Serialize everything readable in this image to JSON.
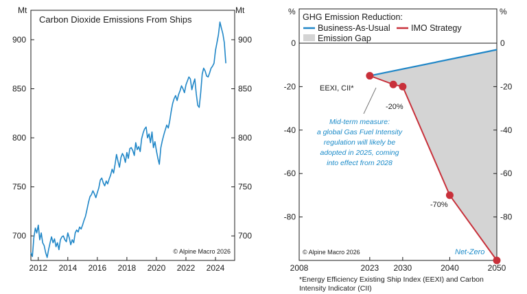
{
  "chart_data": [
    {
      "type": "line",
      "title": "Carbon Dioxide Emissions From Ships",
      "unit_left": "Mt",
      "unit_right": "Mt",
      "credit": "© Alpine Macro 2026",
      "xlim": [
        2011.5,
        2025.3
      ],
      "ylim": [
        675,
        930
      ],
      "x_ticks": [
        2012,
        2014,
        2016,
        2018,
        2020,
        2022,
        2024
      ],
      "y_ticks": [
        700,
        750,
        800,
        850,
        900
      ],
      "grid": false,
      "color": "#1f86c7",
      "series": [
        {
          "x": [
            2011.5,
            2011.6,
            2011.7,
            2011.8,
            2011.9,
            2012.0,
            2012.1,
            2012.2,
            2012.3,
            2012.4,
            2012.5,
            2012.6,
            2012.7,
            2012.8,
            2012.9,
            2013.0,
            2013.1,
            2013.2,
            2013.3,
            2013.4,
            2013.5,
            2013.6,
            2013.7,
            2013.8,
            2013.9,
            2014.0,
            2014.1,
            2014.2,
            2014.3,
            2014.4,
            2014.5,
            2014.6,
            2014.7,
            2014.8,
            2014.9,
            2015.0,
            2015.1,
            2015.2,
            2015.3,
            2015.4,
            2015.5,
            2015.6,
            2015.7,
            2015.8,
            2015.9,
            2016.0,
            2016.1,
            2016.2,
            2016.3,
            2016.4,
            2016.5,
            2016.6,
            2016.7,
            2016.8,
            2016.9,
            2017.0,
            2017.1,
            2017.2,
            2017.3,
            2017.4,
            2017.5,
            2017.6,
            2017.7,
            2017.8,
            2017.9,
            2018.0,
            2018.1,
            2018.2,
            2018.3,
            2018.4,
            2018.5,
            2018.6,
            2018.7,
            2018.8,
            2018.9,
            2019.0,
            2019.1,
            2019.2,
            2019.3,
            2019.4,
            2019.5,
            2019.6,
            2019.7,
            2019.8,
            2019.9,
            2020.0,
            2020.1,
            2020.2,
            2020.3,
            2020.4,
            2020.5,
            2020.6,
            2020.7,
            2020.8,
            2020.9,
            2021.0,
            2021.1,
            2021.2,
            2021.3,
            2021.4,
            2021.5,
            2021.6,
            2021.7,
            2021.8,
            2021.9,
            2022.0,
            2022.1,
            2022.2,
            2022.3,
            2022.4,
            2022.5,
            2022.6,
            2022.7,
            2022.8,
            2022.9,
            2023.0,
            2023.1,
            2023.2,
            2023.3,
            2023.4,
            2023.5,
            2023.6,
            2023.7,
            2023.8,
            2023.9,
            2024.0,
            2024.1,
            2024.2,
            2024.3,
            2024.4,
            2024.5,
            2024.6,
            2024.7
          ],
          "values": [
            683,
            679,
            698,
            708,
            703,
            711,
            696,
            703,
            693,
            690,
            683,
            678,
            686,
            693,
            699,
            693,
            697,
            689,
            693,
            686,
            696,
            699,
            700,
            696,
            694,
            703,
            698,
            691,
            696,
            693,
            703,
            706,
            704,
            709,
            707,
            711,
            716,
            720,
            727,
            734,
            740,
            742,
            746,
            743,
            739,
            744,
            749,
            757,
            759,
            754,
            751,
            756,
            753,
            758,
            762,
            768,
            764,
            773,
            783,
            776,
            770,
            780,
            784,
            781,
            775,
            785,
            779,
            789,
            790,
            787,
            782,
            795,
            788,
            791,
            786,
            799,
            805,
            809,
            811,
            800,
            804,
            795,
            806,
            790,
            796,
            787,
            779,
            773,
            790,
            797,
            803,
            808,
            813,
            810,
            817,
            827,
            835,
            840,
            843,
            838,
            844,
            848,
            853,
            850,
            846,
            854,
            858,
            862,
            860,
            849,
            855,
            860,
            845,
            833,
            831,
            846,
            865,
            871,
            868,
            863,
            862,
            866,
            871,
            873,
            876,
            889,
            897,
            905,
            918,
            912,
            906,
            897,
            876
          ]
        }
      ]
    },
    {
      "type": "area",
      "title": "",
      "unit_left": "%",
      "unit_right": "%",
      "credit": "© Alpine Macro 2026",
      "xlim": [
        2008,
        2050
      ],
      "ylim": [
        -100,
        0
      ],
      "x_ticks": [
        2008,
        2023,
        2030,
        2040,
        2050
      ],
      "y_ticks": [
        0,
        -20,
        -40,
        -60,
        -80
      ],
      "grid": false,
      "legend": {
        "title": "GHG Emission Reduction:",
        "placement": "top-left",
        "entries": [
          {
            "name": "Business-As-Usual",
            "color": "#1f86c7",
            "swatch": "line"
          },
          {
            "name": "IMO Strategy",
            "color": "#c8303a",
            "swatch": "line"
          },
          {
            "name": "Emission Gap",
            "color": "#d4d4d4",
            "swatch": "box"
          }
        ]
      },
      "series": [
        {
          "name": "Business-As-Usual",
          "color": "#1f86c7",
          "x": [
            2023,
            2050
          ],
          "values": [
            -15,
            -3
          ]
        },
        {
          "name": "IMO Strategy",
          "color": "#c8303a",
          "x": [
            2023,
            2028,
            2030,
            2040,
            2050
          ],
          "values": [
            -15,
            -19,
            -20,
            -70,
            -100
          ]
        }
      ],
      "annotations": {
        "eexi": "EEXI, CII*",
        "minus20": "-20%",
        "minus70": "-70%",
        "net_zero": "Net-Zero",
        "note_lines": [
          "Mid-term measure:",
          "a global Gas Fuel Intensity",
          "regulation will likely be",
          "adopted in 2025, coming",
          "into effect from 2028"
        ]
      },
      "footnote_lines": [
        "*Energy Efficiency Existing Ship Index (EEXI) and Carbon",
        "Intensity Indicator (CII)"
      ]
    }
  ]
}
